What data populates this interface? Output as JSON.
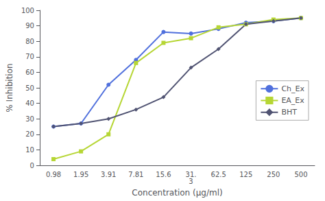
{
  "chart_data": {
    "type": "line",
    "xlabel": "Concentration (µg/ml)",
    "ylabel": "% Inhibition",
    "categories": [
      "0.98",
      "1.95",
      "3.91",
      "7.81",
      "15.6",
      "31.\n3",
      "62.5",
      "125",
      "250",
      "500"
    ],
    "series": [
      {
        "name": "Ch_Ex",
        "marker": "circle",
        "values": [
          25,
          27,
          52,
          68,
          86,
          85,
          88,
          92,
          93,
          95
        ]
      },
      {
        "name": "EA_Ex",
        "marker": "square",
        "values": [
          4,
          9,
          20,
          66,
          79,
          82,
          89,
          91,
          94,
          95
        ]
      },
      {
        "name": "BHT",
        "marker": "diamond",
        "values": [
          25,
          27,
          30,
          36,
          44,
          63,
          75,
          91,
          93,
          95
        ]
      }
    ],
    "ylim": [
      0,
      100
    ],
    "yticks": [
      0,
      10,
      20,
      30,
      40,
      50,
      60,
      70,
      80,
      90,
      100
    ],
    "grid": false,
    "legend": "right"
  }
}
